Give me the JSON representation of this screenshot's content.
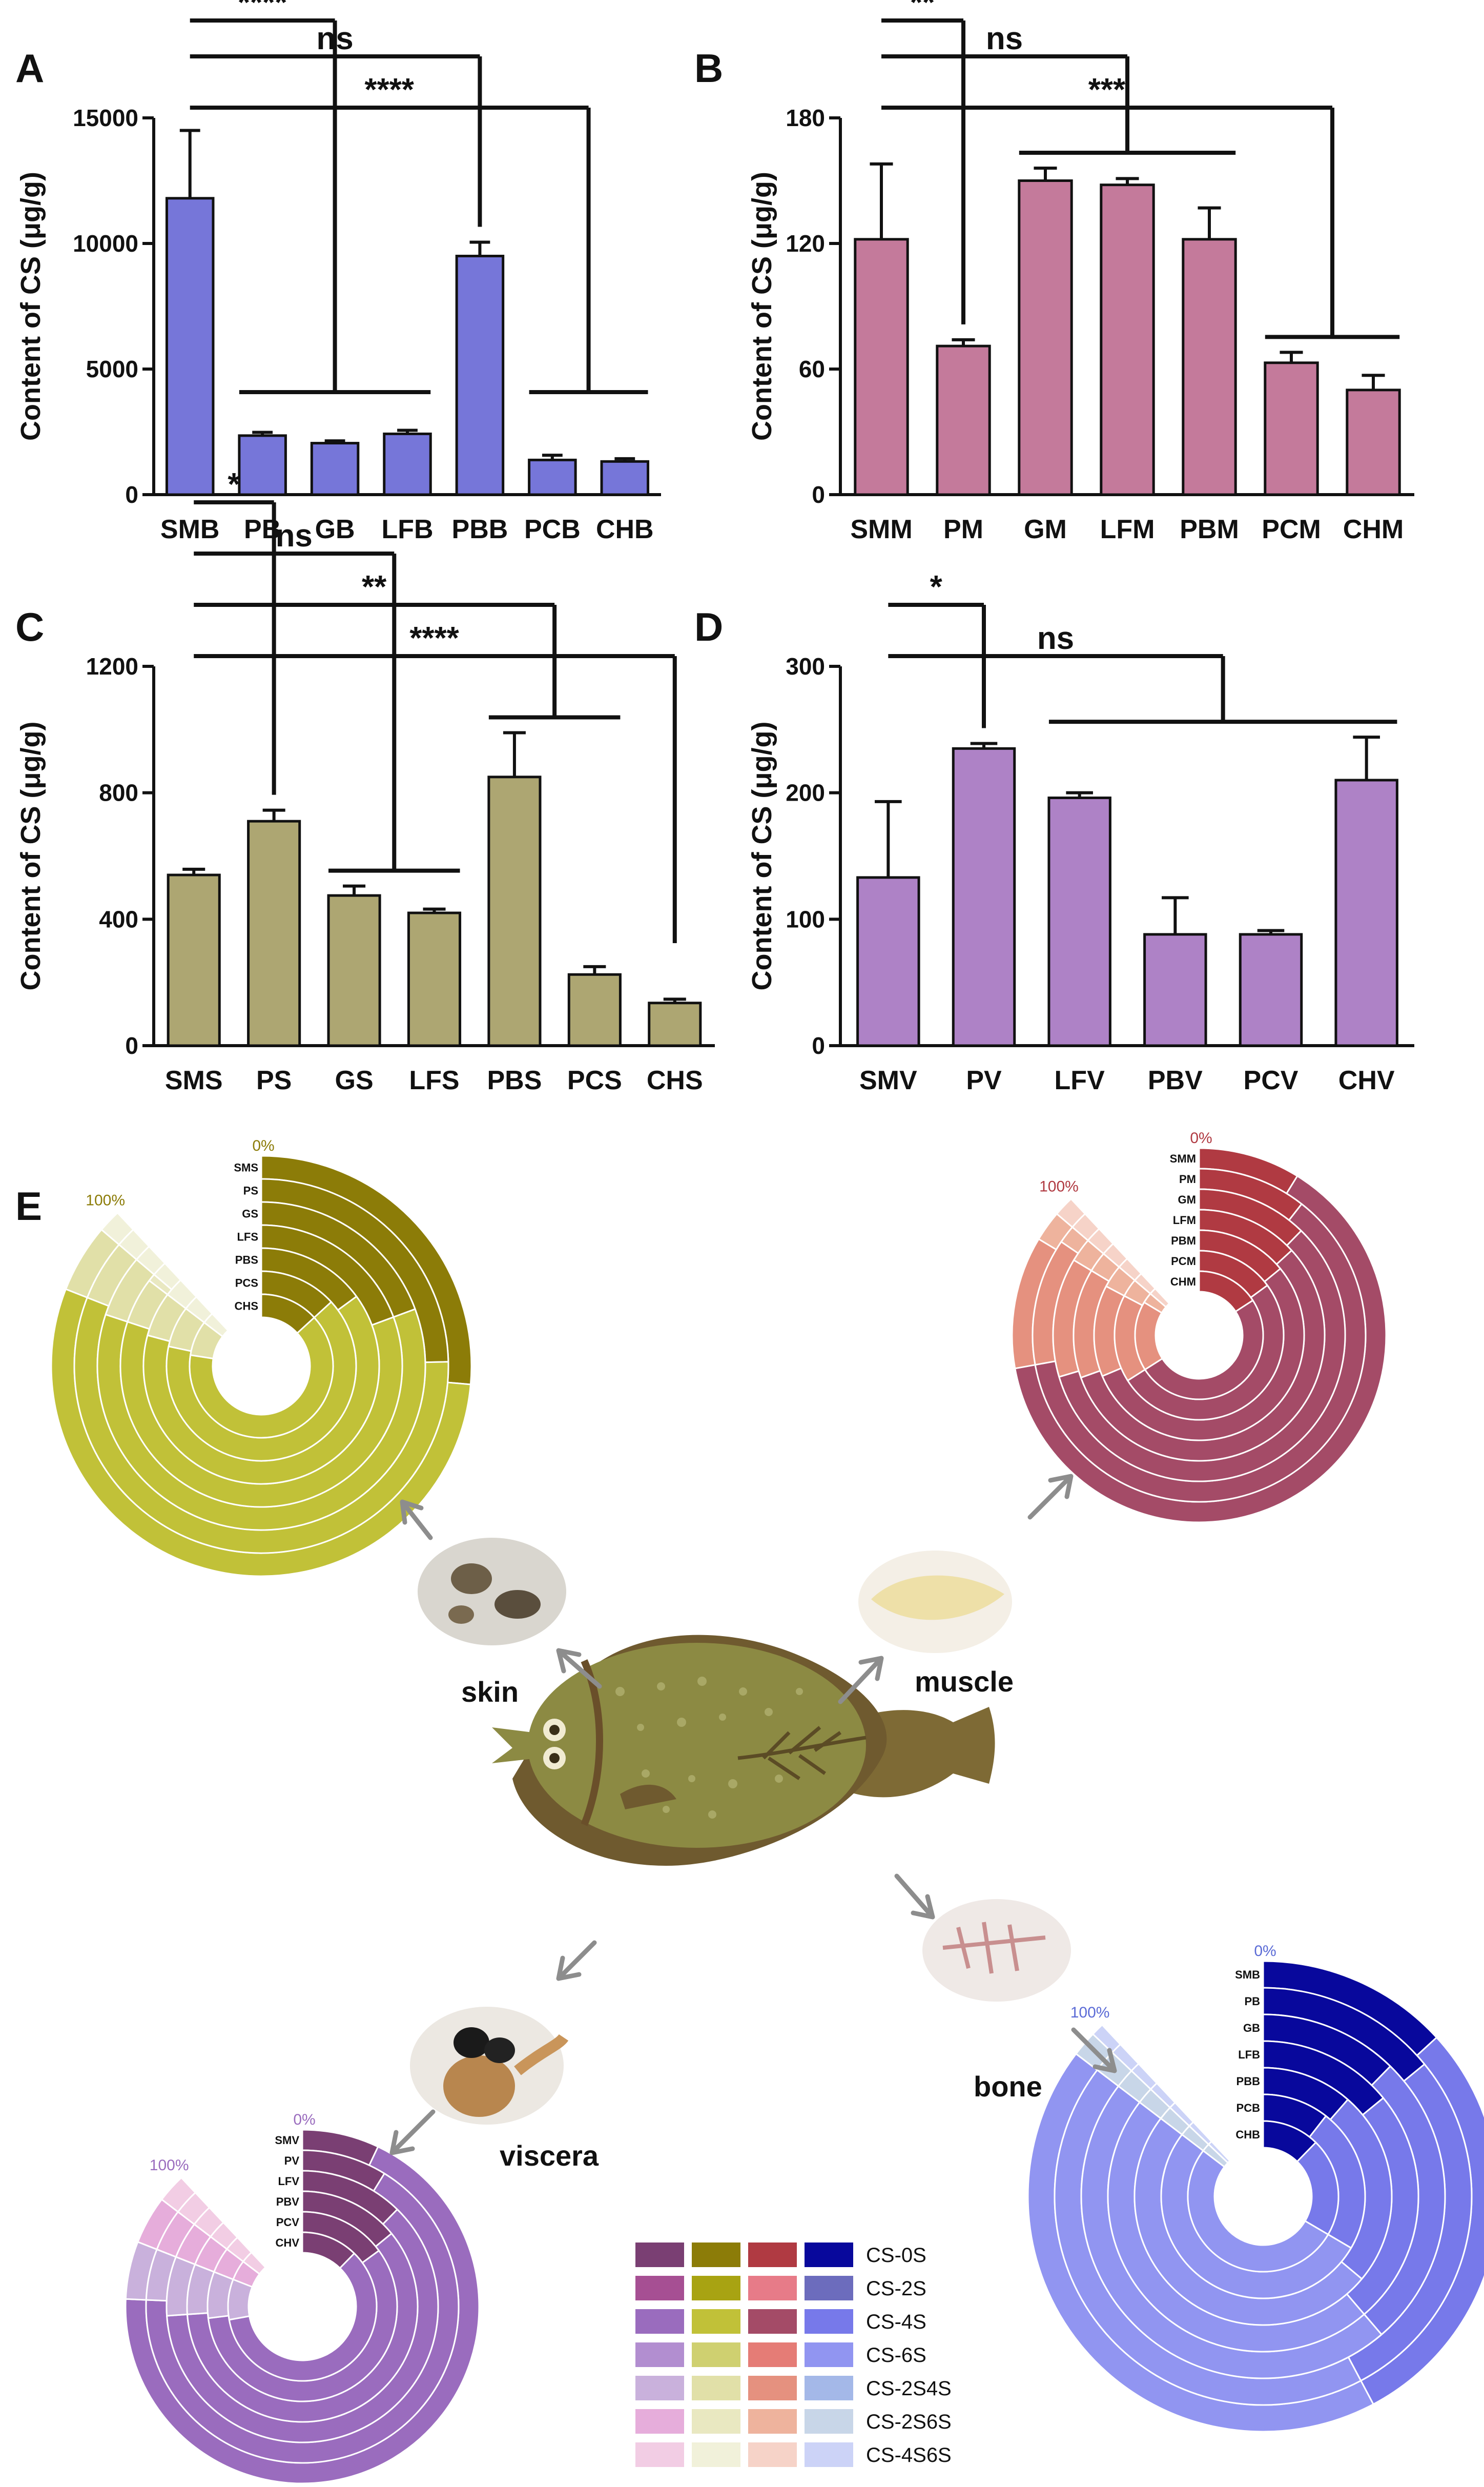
{
  "panels": {
    "A": {
      "letter": "A"
    },
    "B": {
      "letter": "B"
    },
    "C": {
      "letter": "C"
    },
    "D": {
      "letter": "D"
    },
    "E": {
      "letter": "E"
    }
  },
  "chart_data": [
    {
      "id": "A",
      "type": "bar",
      "color": "#7676d9",
      "ylabel": "Content of CS (μg/g)",
      "ylim": [
        0,
        15000
      ],
      "yticks": [
        "0",
        "5000",
        "10000",
        "15000"
      ],
      "ytick_values": [
        0,
        5000,
        10000,
        15000
      ],
      "categories": [
        "SMB",
        "PB",
        "GB",
        "LFB",
        "PBB",
        "PCB",
        "CHB"
      ],
      "values": [
        11800,
        2350,
        2050,
        2420,
        9500,
        1380,
        1320
      ],
      "errors": [
        2700,
        130,
        90,
        140,
        550,
        190,
        110
      ],
      "significance": [
        {
          "label": "****",
          "ref": 0,
          "group": [
            1,
            3
          ]
        },
        {
          "label": "ns",
          "ref": 0,
          "group": [
            4,
            4
          ]
        },
        {
          "label": "****",
          "ref": 0,
          "group": [
            5,
            6
          ]
        }
      ]
    },
    {
      "id": "B",
      "type": "bar",
      "color": "#c47a9b",
      "ylabel": "Content of CS (μg/g)",
      "ylim": [
        0,
        180
      ],
      "yticks": [
        "0",
        "60",
        "120",
        "180"
      ],
      "ytick_values": [
        0,
        60,
        120,
        180
      ],
      "categories": [
        "SMM",
        "PM",
        "GM",
        "LFM",
        "PBM",
        "PCM",
        "CHM"
      ],
      "values": [
        122,
        71,
        150,
        148,
        122,
        63,
        50
      ],
      "errors": [
        36,
        3,
        6,
        3,
        15,
        5,
        7
      ],
      "significance": [
        {
          "label": "**",
          "ref": 0,
          "group": [
            1,
            1
          ]
        },
        {
          "label": "ns",
          "ref": 0,
          "group": [
            2,
            4
          ]
        },
        {
          "label": "***",
          "ref": 0,
          "group": [
            5,
            6
          ]
        }
      ]
    },
    {
      "id": "C",
      "type": "bar",
      "color": "#ada672",
      "ylabel": "Content of CS (μg/g)",
      "ylim": [
        0,
        1200
      ],
      "yticks": [
        "0",
        "400",
        "800",
        "1200"
      ],
      "ytick_values": [
        0,
        400,
        800,
        1200
      ],
      "categories": [
        "SMS",
        "PS",
        "GS",
        "LFS",
        "PBS",
        "PCS",
        "CHS"
      ],
      "values": [
        540,
        710,
        475,
        420,
        850,
        225,
        135
      ],
      "errors": [
        18,
        35,
        30,
        12,
        140,
        25,
        12
      ],
      "significance": [
        {
          "label": "*",
          "ref": 0,
          "group": [
            1,
            1
          ]
        },
        {
          "label": "ns",
          "ref": 0,
          "group": [
            2,
            3
          ]
        },
        {
          "label": "**",
          "ref": 0,
          "group": [
            4,
            5
          ]
        },
        {
          "label": "****",
          "ref": 0,
          "group": [
            6,
            6
          ]
        }
      ]
    },
    {
      "id": "D",
      "type": "bar",
      "color": "#ae82c6",
      "ylabel": "Content of CS (μg/g)",
      "ylim": [
        0,
        300
      ],
      "yticks": [
        "0",
        "100",
        "200",
        "300"
      ],
      "ytick_values": [
        0,
        100,
        200,
        300
      ],
      "categories": [
        "SMV",
        "PV",
        "LFV",
        "PBV",
        "PCV",
        "CHV"
      ],
      "values": [
        133,
        235,
        196,
        88,
        88,
        210
      ],
      "errors": [
        60,
        4,
        4,
        29,
        3,
        34
      ],
      "significance": [
        {
          "label": "*",
          "ref": 0,
          "group": [
            1,
            1
          ]
        },
        {
          "label": "ns",
          "ref": 0,
          "group": [
            2,
            5
          ]
        }
      ]
    }
  ],
  "composition": {
    "components": [
      "CS-0S",
      "CS-2S",
      "CS-4S",
      "CS-6S",
      "CS-2S4S",
      "CS-2S6S",
      "CS-4S6S"
    ],
    "zero_label": "0%",
    "full_label": "100%",
    "palettes": {
      "viscera": [
        "#7a3f73",
        "#a64f93",
        "#9a6cbe",
        "#b28ed0",
        "#c9b1dc",
        "#e6addb",
        "#f2cde4"
      ],
      "skin": [
        "#8c7c08",
        "#a8a312",
        "#c1c138",
        "#cfd070",
        "#e1e0a8",
        "#e9e8c1",
        "#f1f1da"
      ],
      "muscle": [
        "#b03a42",
        "#e77b88",
        "#a44b67",
        "#e57c76",
        "#e5917f",
        "#eeb39d",
        "#f6d3c8"
      ],
      "bone": [
        "#08089c",
        "#6c6cbd",
        "#7779ea",
        "#9195f1",
        "#a4b8e8",
        "#c8d6e8",
        "#ccd3f7"
      ]
    },
    "organs": [
      {
        "id": "skin",
        "name": "skin",
        "samples": [
          "SMS",
          "PS",
          "GS",
          "LFS",
          "PBS",
          "PCS",
          "CHS"
        ],
        "fractions": [
          [
            0.3,
            0,
            0.62,
            0,
            0.06,
            0,
            0.02
          ],
          [
            0.28,
            0,
            0.64,
            0,
            0.06,
            0,
            0.02
          ],
          [
            0.22,
            0,
            0.69,
            0,
            0.07,
            0,
            0.02
          ],
          [
            0.22,
            0,
            0.69,
            0,
            0.06,
            0.01,
            0.02
          ],
          [
            0.17,
            0,
            0.73,
            0,
            0.07,
            0,
            0.03
          ],
          [
            0.15,
            0,
            0.74,
            0,
            0.08,
            0,
            0.03
          ],
          [
            0.15,
            0,
            0.73,
            0,
            0.09,
            0,
            0.03
          ]
        ]
      },
      {
        "id": "muscle",
        "name": "muscle",
        "samples": [
          "SMM",
          "PM",
          "GM",
          "LFM",
          "PBM",
          "PCM",
          "CHM"
        ],
        "fractions": [
          [
            0.1,
            0,
            0.72,
            0,
            0.13,
            0.03,
            0.02
          ],
          [
            0.12,
            0,
            0.7,
            0,
            0.14,
            0.02,
            0.02
          ],
          [
            0.14,
            0,
            0.66,
            0,
            0.15,
            0.03,
            0.02
          ],
          [
            0.15,
            0,
            0.64,
            0,
            0.16,
            0.03,
            0.02
          ],
          [
            0.16,
            0,
            0.62,
            0,
            0.16,
            0.04,
            0.02
          ],
          [
            0.17,
            0,
            0.58,
            0,
            0.19,
            0.04,
            0.02
          ],
          [
            0.18,
            0,
            0.57,
            0,
            0.2,
            0.03,
            0.02
          ]
        ]
      },
      {
        "id": "bone",
        "name": "bone",
        "samples": [
          "SMB",
          "PB",
          "GB",
          "LFB",
          "PBB",
          "PCB",
          "CHB"
        ],
        "fractions": [
          [
            0.15,
            0,
            0.33,
            0.49,
            0,
            0.02,
            0.01
          ],
          [
            0.16,
            0,
            0.32,
            0.49,
            0,
            0.02,
            0.01
          ],
          [
            0.14,
            0,
            0.3,
            0.53,
            0,
            0.02,
            0.01
          ],
          [
            0.16,
            0,
            0.28,
            0.53,
            0,
            0.02,
            0.01
          ],
          [
            0.13,
            0,
            0.28,
            0.56,
            0,
            0.02,
            0.01
          ],
          [
            0.12,
            0,
            0.26,
            0.59,
            0,
            0.02,
            0.01
          ],
          [
            0.14,
            0,
            0.24,
            0.59,
            0,
            0.02,
            0.01
          ]
        ]
      },
      {
        "id": "viscera",
        "name": "viscera",
        "samples": [
          "SMV",
          "PV",
          "LFV",
          "PBV",
          "PCV",
          "CHV"
        ],
        "fractions": [
          [
            0.08,
            0,
            0.78,
            0,
            0.06,
            0.05,
            0.03
          ],
          [
            0.1,
            0,
            0.76,
            0,
            0.06,
            0.05,
            0.03
          ],
          [
            0.14,
            0,
            0.7,
            0,
            0.08,
            0.05,
            0.03
          ],
          [
            0.16,
            0,
            0.68,
            0,
            0.08,
            0.05,
            0.03
          ],
          [
            0.17,
            0,
            0.66,
            0,
            0.09,
            0.05,
            0.03
          ],
          [
            0.14,
            0,
            0.68,
            0,
            0.1,
            0.05,
            0.03
          ]
        ]
      }
    ]
  }
}
